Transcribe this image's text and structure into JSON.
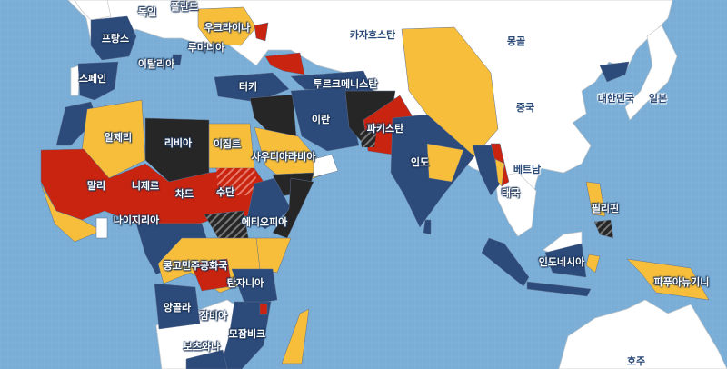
{
  "map": {
    "colors": {
      "ocean": "#7aaed6",
      "no_advisory": "#ffffff",
      "level1_blue": "#2c4a7a",
      "level2_yellow": "#f6be3b",
      "level3_red": "#c8240f",
      "level4_black": "#262626",
      "special_hatched": "striped"
    },
    "labels": [
      {
        "name": "독일"
      },
      {
        "name": "폴란드"
      },
      {
        "name": "우크라이나"
      },
      {
        "name": "카자흐스탄"
      },
      {
        "name": "몽골"
      },
      {
        "name": "프랑스"
      },
      {
        "name": "루마니아"
      },
      {
        "name": "이탈리아"
      },
      {
        "name": "스페인"
      },
      {
        "name": "터키"
      },
      {
        "name": "투르크메니스탄"
      },
      {
        "name": "대한민국"
      },
      {
        "name": "일본"
      },
      {
        "name": "중국"
      },
      {
        "name": "알제리"
      },
      {
        "name": "리비아"
      },
      {
        "name": "이집트"
      },
      {
        "name": "이란"
      },
      {
        "name": "파키스탄"
      },
      {
        "name": "사우디아라비아"
      },
      {
        "name": "인도"
      },
      {
        "name": "베트남"
      },
      {
        "name": "말리"
      },
      {
        "name": "니제르"
      },
      {
        "name": "차드"
      },
      {
        "name": "수단"
      },
      {
        "name": "태국"
      },
      {
        "name": "필리핀"
      },
      {
        "name": "나이지리아"
      },
      {
        "name": "에티오피아"
      },
      {
        "name": "인도네시아"
      },
      {
        "name": "콩고민주공화국"
      },
      {
        "name": "파푸아뉴기니"
      },
      {
        "name": "탄자니아"
      },
      {
        "name": "앙골라"
      },
      {
        "name": "잠비아"
      },
      {
        "name": "모잠비크"
      },
      {
        "name": "보츠와나"
      },
      {
        "name": "호주"
      }
    ]
  }
}
